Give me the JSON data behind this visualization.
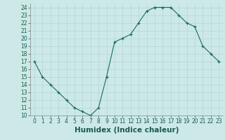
{
  "x": [
    0,
    1,
    2,
    3,
    4,
    5,
    6,
    7,
    8,
    9,
    10,
    11,
    12,
    13,
    14,
    15,
    16,
    17,
    18,
    19,
    20,
    21,
    22,
    23
  ],
  "y": [
    17,
    15,
    14,
    13,
    12,
    11,
    10.5,
    10,
    11,
    15,
    19.5,
    20,
    20.5,
    22,
    23.5,
    24,
    24,
    24,
    23,
    22,
    21.5,
    19,
    18,
    17
  ],
  "xlabel": "Humidex (Indice chaleur)",
  "xlim": [
    -0.5,
    23.5
  ],
  "ylim": [
    10,
    24.5
  ],
  "yticks": [
    10,
    11,
    12,
    13,
    14,
    15,
    16,
    17,
    18,
    19,
    20,
    21,
    22,
    23,
    24
  ],
  "xticks": [
    0,
    1,
    2,
    3,
    4,
    5,
    6,
    7,
    8,
    9,
    10,
    11,
    12,
    13,
    14,
    15,
    16,
    17,
    18,
    19,
    20,
    21,
    22,
    23
  ],
  "line_color": "#1a6b5a",
  "marker": "+",
  "bg_color": "#cce9e7",
  "grid_color": "#b8d9d6",
  "tick_fontsize": 5.5,
  "xlabel_fontsize": 7.5
}
